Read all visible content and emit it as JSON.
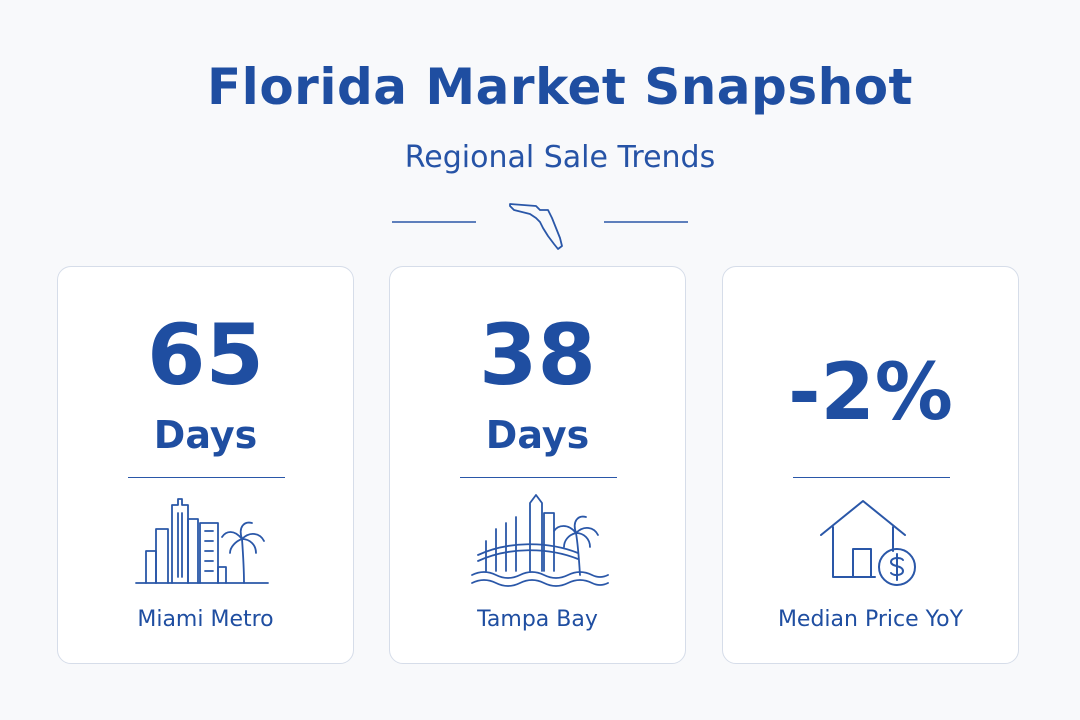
{
  "header": {
    "title": "Florida Market Snapshot",
    "subtitle": "Regional Sale Trends",
    "divider_icon": "florida-map-icon"
  },
  "cards": [
    {
      "value": "65",
      "unit": "Days",
      "label": "Miami Metro",
      "icon": "miami-skyline-icon"
    },
    {
      "value": "38",
      "unit": "Days",
      "label": "Tampa Bay",
      "icon": "tampa-skyline-icon"
    },
    {
      "value": "-2%",
      "label": "Median Price YoY",
      "icon": "house-dollar-icon"
    }
  ],
  "colors": {
    "accent": "#1f4ea1",
    "card_border": "#d6dde9",
    "background": "#f8f9fb"
  }
}
